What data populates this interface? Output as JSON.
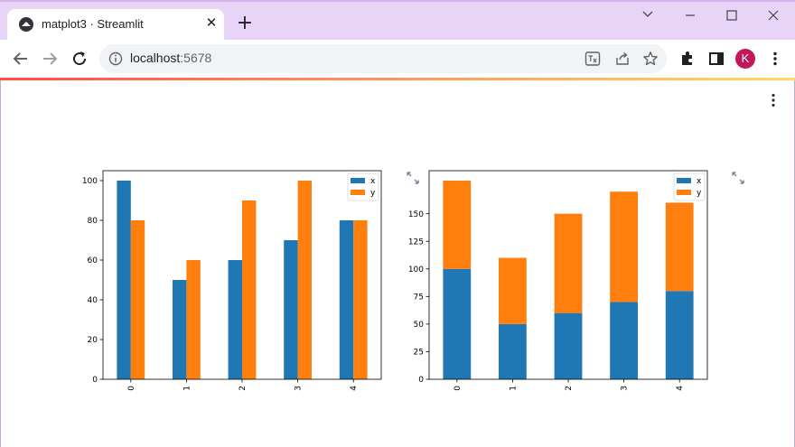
{
  "browser": {
    "tab_title": "matplot3 · Streamlit",
    "close_tab_symbol": "✕",
    "new_tab_symbol": "+",
    "url_host": "localhost",
    "url_port": ":5678",
    "profile_initial": "K",
    "icons": [
      "streamlit-icon",
      "back-icon",
      "forward-icon",
      "reload-icon",
      "info-icon",
      "translate-icon",
      "share-icon",
      "star-icon",
      "extensions-icon",
      "side-panel-icon",
      "more-icon",
      "minimize-icon",
      "maximize-icon",
      "close-icon",
      "chevron-down-icon"
    ],
    "colors": {
      "titlebar": "#e8d4f7",
      "avatar": "#c2185b"
    }
  },
  "app": {
    "colors": {
      "series_x": "#1f77b4",
      "series_y": "#ff7f0e"
    }
  },
  "chart_data": [
    {
      "type": "bar",
      "categories": [
        "0",
        "1",
        "2",
        "3",
        "4"
      ],
      "series": [
        {
          "name": "x",
          "values": [
            100,
            50,
            60,
            70,
            80
          ]
        },
        {
          "name": "y",
          "values": [
            80,
            60,
            90,
            100,
            80
          ]
        }
      ],
      "ylim": [
        0,
        105
      ],
      "yticks": [
        0,
        20,
        40,
        60,
        80,
        100
      ],
      "legend": "top-right",
      "stacked": false
    },
    {
      "type": "bar",
      "categories": [
        "0",
        "1",
        "2",
        "3",
        "4"
      ],
      "series": [
        {
          "name": "x",
          "values": [
            100,
            50,
            60,
            70,
            80
          ]
        },
        {
          "name": "y",
          "values": [
            80,
            60,
            90,
            100,
            80
          ]
        }
      ],
      "ylim": [
        0,
        189
      ],
      "yticks": [
        0,
        25,
        50,
        75,
        100,
        125,
        150
      ],
      "legend": "top-right",
      "stacked": true
    }
  ]
}
